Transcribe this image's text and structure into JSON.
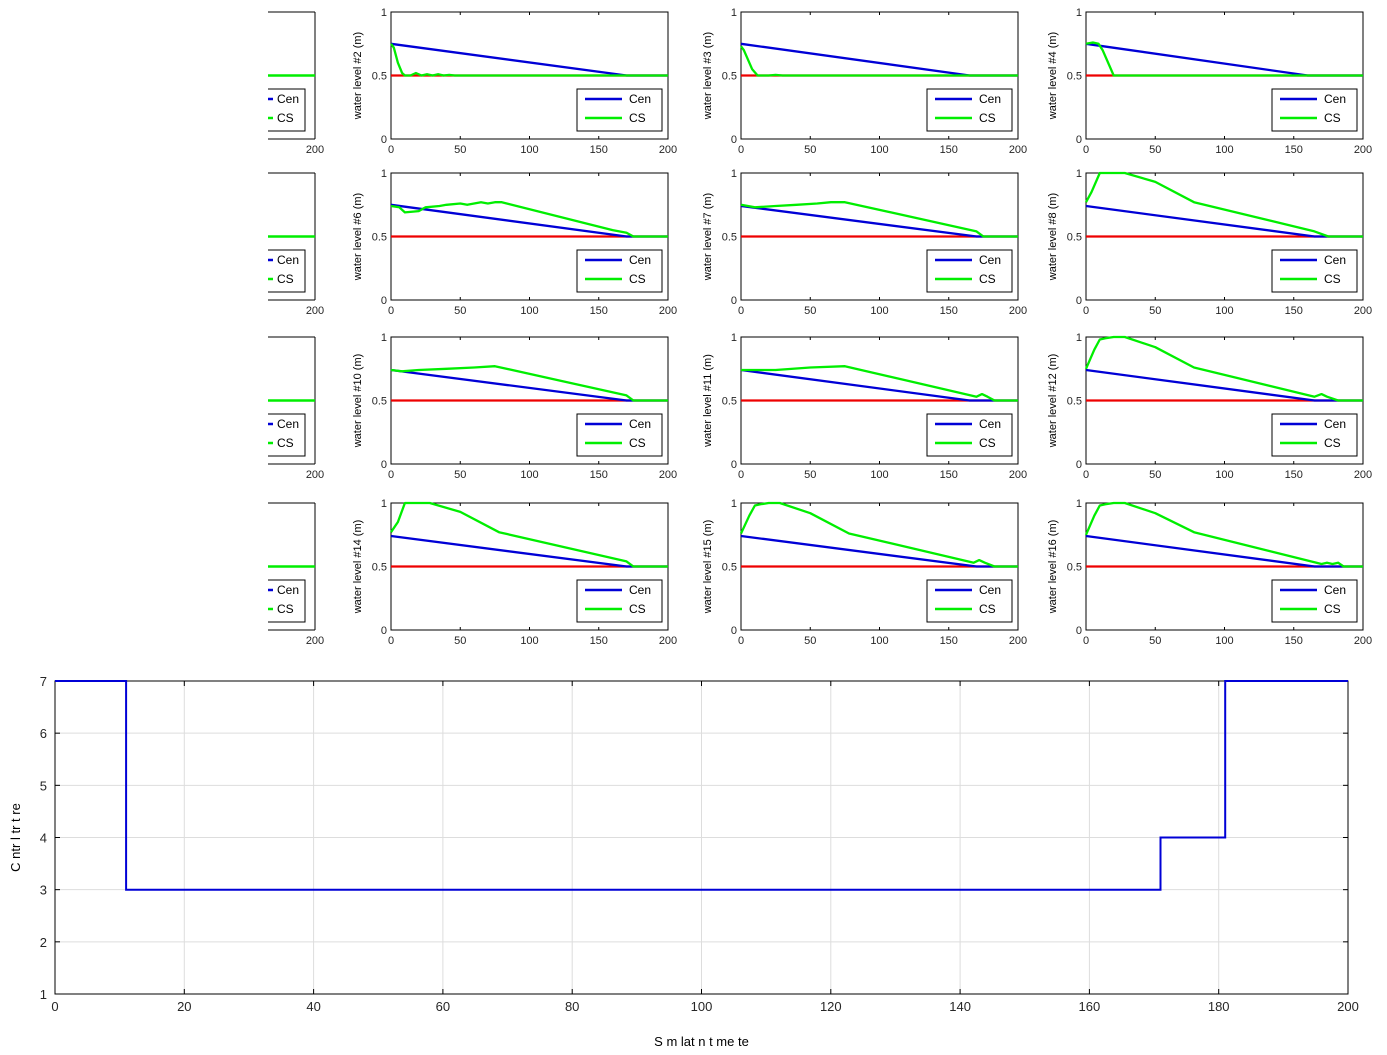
{
  "colors": {
    "cen": "#0000d6",
    "cs": "#00ee00",
    "ref": "#ee0000",
    "grid": "#dddddd"
  },
  "chart_data": [
    {
      "type": "line",
      "ylabel": "water level #2 (m)",
      "xlim": [
        0,
        200
      ],
      "ylim": [
        0,
        1
      ],
      "xticks": [
        "0",
        "50",
        "100",
        "150",
        "200"
      ],
      "yticks": [
        "0",
        "0.5",
        "1"
      ],
      "legend": [
        "Cen",
        "CS"
      ],
      "series": [
        {
          "name": "Cen",
          "x": [
            0,
            170,
            200
          ],
          "y": [
            0.75,
            0.5,
            0.5
          ]
        },
        {
          "name": "CS",
          "x": [
            0,
            2,
            5,
            8,
            10,
            14,
            18,
            22,
            26,
            30,
            34,
            38,
            42,
            46,
            50,
            200
          ],
          "y": [
            0.75,
            0.72,
            0.6,
            0.52,
            0.5,
            0.5,
            0.52,
            0.5,
            0.51,
            0.5,
            0.51,
            0.5,
            0.505,
            0.5,
            0.5,
            0.5
          ]
        },
        {
          "name": "reference",
          "x": [
            0,
            200
          ],
          "y": [
            0.5,
            0.5
          ]
        }
      ]
    },
    {
      "type": "line",
      "ylabel": "water level #3 (m)",
      "xlim": [
        0,
        200
      ],
      "ylim": [
        0,
        1
      ],
      "xticks": [
        "0",
        "50",
        "100",
        "150",
        "200"
      ],
      "yticks": [
        "0",
        "0.5",
        "1"
      ],
      "legend": [
        "Cen",
        "CS"
      ],
      "series": [
        {
          "name": "Cen",
          "x": [
            0,
            165,
            200
          ],
          "y": [
            0.75,
            0.5,
            0.5
          ]
        },
        {
          "name": "CS",
          "x": [
            0,
            2,
            8,
            12,
            20,
            25,
            30,
            200
          ],
          "y": [
            0.73,
            0.7,
            0.55,
            0.5,
            0.5,
            0.505,
            0.5,
            0.5
          ]
        },
        {
          "name": "reference",
          "x": [
            0,
            200
          ],
          "y": [
            0.5,
            0.5
          ]
        }
      ]
    },
    {
      "type": "line",
      "ylabel": "water level #4 (m)",
      "xlim": [
        0,
        200
      ],
      "ylim": [
        0,
        1
      ],
      "xticks": [
        "0",
        "50",
        "100",
        "150",
        "200"
      ],
      "yticks": [
        "0",
        "0.5",
        "1"
      ],
      "legend": [
        "Cen",
        "CS"
      ],
      "series": [
        {
          "name": "Cen",
          "x": [
            0,
            160,
            200
          ],
          "y": [
            0.75,
            0.5,
            0.5
          ]
        },
        {
          "name": "CS",
          "x": [
            0,
            5,
            9,
            12,
            20,
            200
          ],
          "y": [
            0.75,
            0.76,
            0.75,
            0.7,
            0.5,
            0.5
          ]
        },
        {
          "name": "reference",
          "x": [
            0,
            200
          ],
          "y": [
            0.5,
            0.5
          ]
        }
      ]
    },
    {
      "type": "line",
      "ylabel": "water level #6 (m)",
      "xlim": [
        0,
        200
      ],
      "ylim": [
        0,
        1
      ],
      "xticks": [
        "0",
        "50",
        "100",
        "150",
        "200"
      ],
      "yticks": [
        "0",
        "0.5",
        "1"
      ],
      "legend": [
        "Cen",
        "CS"
      ],
      "series": [
        {
          "name": "Cen",
          "x": [
            0,
            170,
            200
          ],
          "y": [
            0.75,
            0.5,
            0.5
          ]
        },
        {
          "name": "CS",
          "x": [
            0,
            6,
            10,
            20,
            25,
            35,
            40,
            50,
            55,
            65,
            70,
            75,
            80,
            160,
            170,
            175,
            200
          ],
          "y": [
            0.74,
            0.73,
            0.69,
            0.7,
            0.73,
            0.74,
            0.75,
            0.76,
            0.75,
            0.77,
            0.76,
            0.77,
            0.77,
            0.55,
            0.53,
            0.5,
            0.5
          ]
        },
        {
          "name": "reference",
          "x": [
            0,
            200
          ],
          "y": [
            0.5,
            0.5
          ]
        }
      ]
    },
    {
      "type": "line",
      "ylabel": "water level #7 (m)",
      "xlim": [
        0,
        200
      ],
      "ylim": [
        0,
        1
      ],
      "xticks": [
        "0",
        "50",
        "100",
        "150",
        "200"
      ],
      "yticks": [
        "0",
        "0.5",
        "1"
      ],
      "legend": [
        "Cen",
        "CS"
      ],
      "series": [
        {
          "name": "Cen",
          "x": [
            0,
            170,
            200
          ],
          "y": [
            0.74,
            0.5,
            0.5
          ]
        },
        {
          "name": "CS",
          "x": [
            0,
            10,
            25,
            40,
            55,
            65,
            75,
            170,
            175,
            200
          ],
          "y": [
            0.75,
            0.73,
            0.74,
            0.75,
            0.76,
            0.77,
            0.77,
            0.54,
            0.5,
            0.5
          ]
        },
        {
          "name": "reference",
          "x": [
            0,
            200
          ],
          "y": [
            0.5,
            0.5
          ]
        }
      ]
    },
    {
      "type": "line",
      "ylabel": "water level #8 (m)",
      "xlim": [
        0,
        200
      ],
      "ylim": [
        0,
        1
      ],
      "xticks": [
        "0",
        "50",
        "100",
        "150",
        "200"
      ],
      "yticks": [
        "0",
        "0.5",
        "1"
      ],
      "legend": [
        "Cen",
        "CS"
      ],
      "series": [
        {
          "name": "Cen",
          "x": [
            0,
            165,
            200
          ],
          "y": [
            0.74,
            0.5,
            0.5
          ]
        },
        {
          "name": "CS",
          "x": [
            0,
            4,
            10,
            20,
            28,
            50,
            78,
            165,
            175,
            200
          ],
          "y": [
            0.77,
            0.85,
            1.0,
            1.0,
            1.0,
            0.93,
            0.77,
            0.54,
            0.5,
            0.5
          ]
        },
        {
          "name": "reference",
          "x": [
            0,
            200
          ],
          "y": [
            0.5,
            0.5
          ]
        }
      ]
    },
    {
      "type": "line",
      "ylabel": "water level #10 (m)",
      "xlim": [
        0,
        200
      ],
      "ylim": [
        0,
        1
      ],
      "xticks": [
        "0",
        "50",
        "100",
        "150",
        "200"
      ],
      "yticks": [
        "0",
        "0.5",
        "1"
      ],
      "legend": [
        "Cen",
        "CS"
      ],
      "series": [
        {
          "name": "Cen",
          "x": [
            0,
            170,
            200
          ],
          "y": [
            0.74,
            0.5,
            0.5
          ]
        },
        {
          "name": "CS",
          "x": [
            0,
            8,
            20,
            40,
            60,
            75,
            170,
            175,
            200
          ],
          "y": [
            0.74,
            0.73,
            0.74,
            0.75,
            0.76,
            0.77,
            0.54,
            0.5,
            0.5
          ]
        },
        {
          "name": "reference",
          "x": [
            0,
            200
          ],
          "y": [
            0.5,
            0.5
          ]
        }
      ]
    },
    {
      "type": "line",
      "ylabel": "water level #11 (m)",
      "xlim": [
        0,
        200
      ],
      "ylim": [
        0,
        1
      ],
      "xticks": [
        "0",
        "50",
        "100",
        "150",
        "200"
      ],
      "yticks": [
        "0",
        "0.5",
        "1"
      ],
      "legend": [
        "Cen",
        "CS"
      ],
      "series": [
        {
          "name": "Cen",
          "x": [
            0,
            165,
            200
          ],
          "y": [
            0.74,
            0.5,
            0.5
          ]
        },
        {
          "name": "CS",
          "x": [
            0,
            25,
            50,
            75,
            170,
            174,
            178,
            183,
            200
          ],
          "y": [
            0.74,
            0.74,
            0.76,
            0.77,
            0.53,
            0.55,
            0.53,
            0.5,
            0.5
          ]
        },
        {
          "name": "reference",
          "x": [
            0,
            200
          ],
          "y": [
            0.5,
            0.5
          ]
        }
      ]
    },
    {
      "type": "line",
      "ylabel": "water level #12 (m)",
      "xlim": [
        0,
        200
      ],
      "ylim": [
        0,
        1
      ],
      "xticks": [
        "0",
        "50",
        "100",
        "150",
        "200"
      ],
      "yticks": [
        "0",
        "0.5",
        "1"
      ],
      "legend": [
        "Cen",
        "CS"
      ],
      "series": [
        {
          "name": "Cen",
          "x": [
            0,
            165,
            200
          ],
          "y": [
            0.74,
            0.5,
            0.5
          ]
        },
        {
          "name": "CS",
          "x": [
            0,
            6,
            10,
            14,
            20,
            28,
            50,
            78,
            165,
            170,
            174,
            182,
            200
          ],
          "y": [
            0.75,
            0.9,
            0.98,
            0.99,
            1.0,
            1.0,
            0.92,
            0.76,
            0.53,
            0.55,
            0.53,
            0.5,
            0.5
          ]
        },
        {
          "name": "reference",
          "x": [
            0,
            200
          ],
          "y": [
            0.5,
            0.5
          ]
        }
      ]
    },
    {
      "type": "line",
      "ylabel": "water level #14 (m)",
      "xlim": [
        0,
        200
      ],
      "ylim": [
        0,
        1
      ],
      "xticks": [
        "0",
        "50",
        "100",
        "150",
        "200"
      ],
      "yticks": [
        "0",
        "0.5",
        "1"
      ],
      "legend": [
        "Cen",
        "CS"
      ],
      "series": [
        {
          "name": "Cen",
          "x": [
            0,
            170,
            200
          ],
          "y": [
            0.74,
            0.5,
            0.5
          ]
        },
        {
          "name": "CS",
          "x": [
            0,
            5,
            10,
            20,
            28,
            50,
            78,
            170,
            175,
            200
          ],
          "y": [
            0.77,
            0.85,
            1.0,
            1.0,
            1.0,
            0.93,
            0.77,
            0.54,
            0.5,
            0.5
          ]
        },
        {
          "name": "reference",
          "x": [
            0,
            200
          ],
          "y": [
            0.5,
            0.5
          ]
        }
      ]
    },
    {
      "type": "line",
      "ylabel": "water level #15 (m)",
      "xlim": [
        0,
        200
      ],
      "ylim": [
        0,
        1
      ],
      "xticks": [
        "0",
        "50",
        "100",
        "150",
        "200"
      ],
      "yticks": [
        "0",
        "0.5",
        "1"
      ],
      "legend": [
        "Cen",
        "CS"
      ],
      "series": [
        {
          "name": "Cen",
          "x": [
            0,
            170,
            200
          ],
          "y": [
            0.74,
            0.5,
            0.5
          ]
        },
        {
          "name": "CS",
          "x": [
            0,
            6,
            10,
            14,
            20,
            28,
            50,
            78,
            168,
            172,
            176,
            183,
            200
          ],
          "y": [
            0.76,
            0.9,
            0.98,
            0.99,
            1.0,
            1.0,
            0.92,
            0.76,
            0.53,
            0.55,
            0.53,
            0.5,
            0.5
          ]
        },
        {
          "name": "reference",
          "x": [
            0,
            200
          ],
          "y": [
            0.5,
            0.5
          ]
        }
      ]
    },
    {
      "type": "line",
      "ylabel": "water level #16 (m)",
      "xlim": [
        0,
        200
      ],
      "ylim": [
        0,
        1
      ],
      "xticks": [
        "0",
        "50",
        "100",
        "150",
        "200"
      ],
      "yticks": [
        "0",
        "0.5",
        "1"
      ],
      "legend": [
        "Cen",
        "CS"
      ],
      "series": [
        {
          "name": "Cen",
          "x": [
            0,
            165,
            200
          ],
          "y": [
            0.74,
            0.5,
            0.5
          ]
        },
        {
          "name": "CS",
          "x": [
            0,
            6,
            10,
            14,
            20,
            28,
            50,
            78,
            170,
            174,
            178,
            182,
            186,
            200
          ],
          "y": [
            0.75,
            0.9,
            0.98,
            0.99,
            1.0,
            1.0,
            0.92,
            0.77,
            0.52,
            0.53,
            0.52,
            0.53,
            0.5,
            0.5
          ]
        },
        {
          "name": "reference",
          "x": [
            0,
            200
          ],
          "y": [
            0.5,
            0.5
          ]
        }
      ]
    },
    {
      "type": "line",
      "xlabel": "S m lat n t me te",
      "ylabel": "C ntr l tr t re",
      "xlim": [
        0,
        200
      ],
      "ylim": [
        1,
        7
      ],
      "xticks": [
        "0",
        "20",
        "40",
        "60",
        "80",
        "100",
        "120",
        "140",
        "160",
        "180",
        "200"
      ],
      "yticks": [
        "1",
        "2",
        "3",
        "4",
        "5",
        "6",
        "7"
      ],
      "grid": true,
      "series": [
        {
          "name": "control structure",
          "x": [
            0,
            11,
            11,
            171,
            171,
            181,
            181,
            200
          ],
          "y": [
            7,
            7,
            3,
            3,
            4,
            4,
            7,
            7
          ]
        }
      ]
    }
  ],
  "partial_axes": [
    {
      "xtick": "200",
      "legend": [
        "Cen",
        "CS"
      ]
    },
    {
      "xtick": "200",
      "legend": [
        "Cen",
        "CS"
      ]
    },
    {
      "xtick": "200",
      "legend": [
        "Cen",
        "CS"
      ]
    },
    {
      "xtick": "200",
      "legend": [
        "Cen",
        "CS"
      ]
    }
  ]
}
